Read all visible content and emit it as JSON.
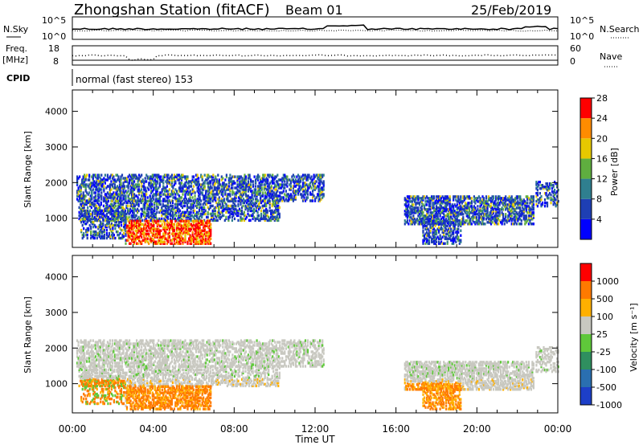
{
  "header": {
    "title": "Zhongshan Station (fitACF)",
    "beam": "Beam 01",
    "date": "25/Feb/2019"
  },
  "noise_panel": {
    "left_label": "N.Sky",
    "right_label": "N.Search",
    "left_ticks": [
      "10^5",
      "10^0"
    ],
    "right_ticks": [
      "10^5",
      "10^0"
    ]
  },
  "freq_panel": {
    "left_label_line1": "Freq.",
    "left_label_line2": "[MHz]",
    "right_label": "Nave",
    "left_ticks": [
      "18",
      "8"
    ],
    "right_ticks": [
      "60",
      "0"
    ]
  },
  "cpid": {
    "label": "CPID",
    "text": "normal (fast stereo) 153"
  },
  "x_axis": {
    "label": "Time UT",
    "ticks": [
      "00:00",
      "04:00",
      "08:00",
      "12:00",
      "16:00",
      "20:00",
      "00:00"
    ]
  },
  "chart_data": [
    {
      "type": "heatmap",
      "ylabel": "Slant Range [km]",
      "yticks": [
        1000,
        2000,
        3000,
        4000
      ],
      "ylim": [
        180,
        4600
      ],
      "xlim_hours": [
        0,
        24
      ],
      "colorbar": {
        "label": "Power [dB]",
        "ticks": [
          "4",
          "8",
          "12",
          "16",
          "20",
          "24",
          "28"
        ],
        "colors": [
          "#0000ff",
          "#1e3fb4",
          "#2f7f8f",
          "#5fae3f",
          "#e6c800",
          "#ff8c00",
          "#ff0000"
        ]
      }
    },
    {
      "type": "heatmap",
      "ylabel": "Slant Range [km]",
      "yticks": [
        1000,
        2000,
        3000,
        4000
      ],
      "ylim": [
        180,
        4600
      ],
      "xlim_hours": [
        0,
        24
      ],
      "colorbar": {
        "label": "Velocity [m s⁻¹]",
        "ticks": [
          "1000",
          "500",
          "100",
          "25",
          "-25",
          "-100",
          "-500",
          "-1000"
        ],
        "colors": [
          "#1d3fc8",
          "#2a6fb0",
          "#2f8f5f",
          "#5fc83a",
          "#c8c8c0",
          "#ffb000",
          "#ff7a00",
          "#ff0000"
        ]
      }
    }
  ]
}
